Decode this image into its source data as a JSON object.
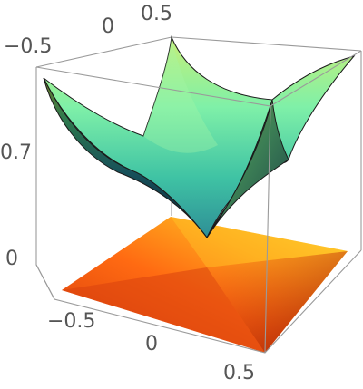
{
  "chart_data": {
    "type": "surface3d",
    "title": "",
    "x_range": [
      -0.5,
      0.5
    ],
    "y_range": [
      -0.5,
      0.5
    ],
    "z_ticks_shown": [
      0,
      0.7
    ],
    "tick_labels": {
      "top_left_axis": [
        "-0.5",
        "0",
        "0.5"
      ],
      "vertical_axis": [
        "0.7",
        "0"
      ],
      "bottom_axis": [
        "-0.5",
        "0",
        "0.5"
      ]
    },
    "surface": {
      "description": "upward-opening cone-like bowl with minimum at center, rising toward corners",
      "min_z_approx": 0.35,
      "corner_z_approx": 1.2,
      "colormap": [
        "#0b2a3a",
        "#1f6b6a",
        "#3fb89a",
        "#9ff0b0",
        "#c9e06a",
        "#caa040"
      ]
    },
    "floor_projection": {
      "colormap": [
        "#b01a05",
        "#e04010",
        "#ff7a10",
        "#ffb020",
        "#ffd030"
      ]
    }
  }
}
